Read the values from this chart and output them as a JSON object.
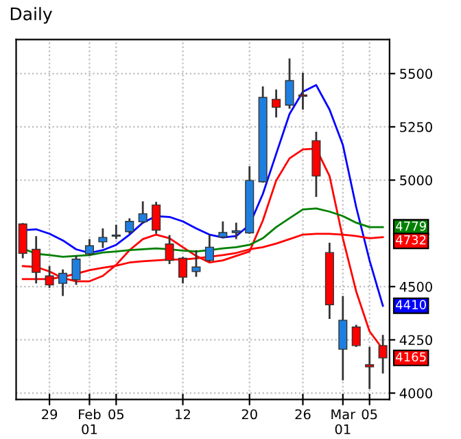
{
  "chart_data": {
    "type": "candlestick",
    "title": "Daily",
    "categories": [
      null,
      null,
      "29",
      null,
      null,
      "Feb\n01",
      null,
      "05",
      null,
      null,
      null,
      null,
      "12",
      null,
      null,
      null,
      null,
      "20",
      null,
      null,
      null,
      "26",
      null,
      null,
      "Mar\n01",
      null,
      "05",
      null
    ],
    "ohlc": [
      [
        4794,
        4798,
        4633,
        4656
      ],
      [
        4675,
        4737,
        4515,
        4567
      ],
      [
        4550,
        4596,
        4494,
        4508
      ],
      [
        4515,
        4581,
        4456,
        4562
      ],
      [
        4533,
        4644,
        4508,
        4629
      ],
      [
        4654,
        4723,
        4644,
        4692
      ],
      [
        4710,
        4773,
        4681,
        4731
      ],
      [
        4737,
        4790,
        4723,
        4742
      ],
      [
        4758,
        4821,
        4748,
        4806
      ],
      [
        4804,
        4900,
        4796,
        4842
      ],
      [
        4883,
        4898,
        4748,
        4765
      ],
      [
        4700,
        4742,
        4606,
        4623
      ],
      [
        4633,
        4640,
        4515,
        4544
      ],
      [
        4571,
        4671,
        4546,
        4592
      ],
      [
        4623,
        4744,
        4617,
        4685
      ],
      [
        4733,
        4806,
        4727,
        4754
      ],
      [
        4754,
        4800,
        4723,
        4762
      ],
      [
        4752,
        5065,
        4748,
        4998
      ],
      [
        4992,
        5440,
        4988,
        5388
      ],
      [
        5379,
        5425,
        5294,
        5342
      ],
      [
        5352,
        5571,
        5335,
        5467
      ],
      [
        5400,
        5504,
        5331,
        5394
      ],
      [
        5185,
        5227,
        4921,
        5019
      ],
      [
        4660,
        4706,
        4348,
        4415
      ],
      [
        4206,
        4456,
        4060,
        4342
      ],
      [
        4310,
        4321,
        4217,
        4223
      ],
      [
        4133,
        4217,
        4019,
        4123
      ],
      [
        4223,
        4273,
        4092,
        4165
      ]
    ],
    "colors": [
      "#ff0000",
      "#ff0000",
      "#ff0000",
      "#1e7fe0",
      "#1e7fe0",
      "#1e7fe0",
      "#1e7fe0",
      "#1e7fe0",
      "#1e7fe0",
      "#1e7fe0",
      "#ff0000",
      "#ff0000",
      "#ff0000",
      "#1e7fe0",
      "#1e7fe0",
      "#1e7fe0",
      "#1e7fe0",
      "#1e7fe0",
      "#1e7fe0",
      "#ff0000",
      "#1e7fe0",
      "#ff0000",
      "#ff0000",
      "#ff0000",
      "#1e7fe0",
      "#ff0000",
      "#ff0000",
      "#ff0000"
    ],
    "series": [
      {
        "type": "line",
        "color": "#0000ff",
        "values": [
          4765,
          4769,
          4748,
          4717,
          4675,
          4658,
          4671,
          4696,
          4744,
          4800,
          4831,
          4827,
          4806,
          4773,
          4744,
          4731,
          4737,
          4790,
          4935,
          5123,
          5310,
          5415,
          5446,
          5331,
          5165,
          4873,
          4623,
          4410
        ],
        "value_labels": [
          null,
          null,
          null,
          null,
          null,
          null,
          null,
          null,
          null,
          null,
          null,
          null,
          null,
          null,
          null,
          null,
          null,
          null,
          null,
          null,
          null,
          null,
          null,
          null,
          null,
          null,
          null,
          "4410"
        ]
      },
      {
        "type": "line",
        "color": "#ff0000",
        "values": [
          4596,
          4592,
          4571,
          4540,
          4525,
          4525,
          4550,
          4602,
          4671,
          4723,
          4744,
          4727,
          4685,
          4644,
          4613,
          4623,
          4644,
          4665,
          4810,
          4998,
          5102,
          5144,
          5148,
          5019,
          4727,
          4477,
          4290,
          4206
        ]
      },
      {
        "type": "line",
        "color": "#008000",
        "values": [
          4679,
          4654,
          4648,
          4640,
          4644,
          4648,
          4660,
          4665,
          4671,
          4675,
          4679,
          4675,
          4669,
          4665,
          4671,
          4679,
          4685,
          4696,
          4727,
          4779,
          4821,
          4862,
          4867,
          4852,
          4831,
          4800,
          4779,
          4779
        ],
        "value_labels": [
          null,
          null,
          null,
          null,
          null,
          null,
          null,
          null,
          null,
          null,
          null,
          null,
          null,
          null,
          null,
          null,
          null,
          null,
          null,
          null,
          null,
          null,
          null,
          null,
          null,
          null,
          null,
          "4779"
        ]
      },
      {
        "type": "line",
        "color": "#ff0000",
        "values": [
          4535,
          4535,
          4535,
          4546,
          4560,
          4577,
          4588,
          4598,
          4613,
          4619,
          4623,
          4627,
          4627,
          4633,
          4640,
          4648,
          4658,
          4675,
          4685,
          4702,
          4723,
          4744,
          4748,
          4748,
          4744,
          4737,
          4727,
          4732
        ],
        "value_labels": [
          null,
          null,
          null,
          null,
          null,
          null,
          null,
          null,
          null,
          null,
          null,
          null,
          null,
          null,
          null,
          null,
          null,
          null,
          null,
          null,
          null,
          null,
          null,
          null,
          null,
          null,
          null,
          "4732"
        ]
      }
    ],
    "annotations": [
      "4165"
    ],
    "ylim": [
      3970,
      5660
    ],
    "yticks": [
      4000,
      4250,
      4500,
      5000,
      5250,
      5500
    ],
    "grid": true
  }
}
